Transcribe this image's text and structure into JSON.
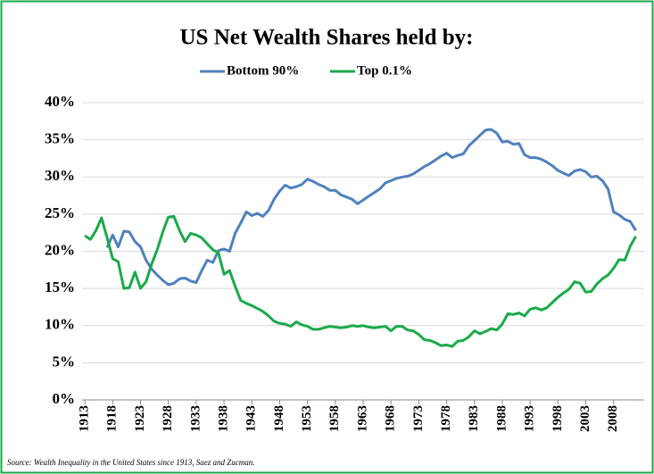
{
  "chart_data": {
    "type": "line",
    "title": "US Net Wealth Shares held by:",
    "source": "Source:  Wealth Inequality in the United States since 1913, Saez and Zucman.",
    "x": [
      1913,
      1914,
      1915,
      1916,
      1917,
      1918,
      1919,
      1920,
      1921,
      1922,
      1923,
      1924,
      1925,
      1926,
      1927,
      1928,
      1929,
      1930,
      1931,
      1932,
      1933,
      1934,
      1935,
      1936,
      1937,
      1938,
      1939,
      1940,
      1941,
      1942,
      1943,
      1944,
      1945,
      1946,
      1947,
      1948,
      1949,
      1950,
      1951,
      1952,
      1953,
      1954,
      1955,
      1956,
      1957,
      1958,
      1959,
      1960,
      1961,
      1962,
      1963,
      1964,
      1965,
      1966,
      1967,
      1968,
      1969,
      1970,
      1971,
      1972,
      1973,
      1974,
      1975,
      1976,
      1977,
      1978,
      1979,
      1980,
      1981,
      1982,
      1983,
      1984,
      1985,
      1986,
      1987,
      1988,
      1989,
      1990,
      1991,
      1992,
      1993,
      1994,
      1995,
      1996,
      1997,
      1998,
      1999,
      2000,
      2001,
      2002,
      2003,
      2004,
      2005,
      2006,
      2007,
      2008,
      2009,
      2010,
      2011,
      2012
    ],
    "series": [
      {
        "name": "Bottom 90%",
        "color": "#4f81bd",
        "values": [
          null,
          null,
          null,
          null,
          20.5,
          22.2,
          20.6,
          22.7,
          22.6,
          21.3,
          20.6,
          18.8,
          17.6,
          16.8,
          16.1,
          15.5,
          15.7,
          16.3,
          16.4,
          16.0,
          15.8,
          17.4,
          18.8,
          18.5,
          20.1,
          20.3,
          20.0,
          22.4,
          23.8,
          25.3,
          24.8,
          25.1,
          24.7,
          25.5,
          27.0,
          28.1,
          28.9,
          28.5,
          28.7,
          29.0,
          29.7,
          29.4,
          29.0,
          28.7,
          28.2,
          28.2,
          27.6,
          27.3,
          27.0,
          26.4,
          26.9,
          27.4,
          27.9,
          28.4,
          29.2,
          29.5,
          29.8,
          30.0,
          30.1,
          30.4,
          30.9,
          31.4,
          31.8,
          32.3,
          32.8,
          33.2,
          32.6,
          32.9,
          33.1,
          34.2,
          34.9,
          35.6,
          36.3,
          36.4,
          35.9,
          34.7,
          34.8,
          34.4,
          34.5,
          33.0,
          32.6,
          32.6,
          32.4,
          32.0,
          31.5,
          30.9,
          30.5,
          30.2,
          30.8,
          31.0,
          30.7,
          30.0,
          30.1,
          29.5,
          28.4,
          25.3,
          24.9,
          24.3,
          24.0,
          22.8
        ]
      },
      {
        "name": "Top 0.1%",
        "color": "#1aaa4a",
        "values": [
          22.1,
          21.6,
          22.8,
          24.5,
          21.8,
          19.0,
          18.6,
          15.0,
          15.1,
          17.2,
          15.0,
          15.9,
          18.3,
          20.2,
          22.6,
          24.6,
          24.7,
          22.8,
          21.3,
          22.4,
          22.2,
          21.8,
          21.0,
          20.2,
          19.8,
          16.9,
          17.4,
          15.3,
          13.4,
          13.0,
          12.7,
          12.3,
          11.9,
          11.3,
          10.6,
          10.3,
          10.2,
          9.9,
          10.5,
          10.1,
          9.9,
          9.5,
          9.5,
          9.7,
          9.9,
          9.8,
          9.7,
          9.8,
          10.0,
          9.9,
          10.0,
          9.8,
          9.7,
          9.8,
          9.9,
          9.3,
          9.9,
          9.9,
          9.4,
          9.3,
          8.8,
          8.1,
          8.0,
          7.7,
          7.3,
          7.4,
          7.2,
          7.9,
          8.0,
          8.5,
          9.3,
          8.9,
          9.2,
          9.6,
          9.4,
          10.2,
          11.6,
          11.5,
          11.7,
          11.3,
          12.2,
          12.4,
          12.1,
          12.4,
          13.1,
          13.8,
          14.4,
          14.9,
          15.9,
          15.7,
          14.5,
          14.6,
          15.6,
          16.3,
          16.8,
          17.7,
          18.9,
          18.8,
          20.7,
          22.0
        ]
      }
    ],
    "xlim": [
      1912.5,
      2013.5
    ],
    "xticks": [
      1913,
      1918,
      1923,
      1928,
      1933,
      1938,
      1943,
      1948,
      1953,
      1958,
      1963,
      1968,
      1973,
      1978,
      1983,
      1988,
      1993,
      1998,
      2003,
      2008
    ],
    "ylim": [
      0,
      40
    ],
    "yticks": [
      {
        "value": 0,
        "label": "0%"
      },
      {
        "value": 5,
        "label": "5%"
      },
      {
        "value": 10,
        "label": "10%"
      },
      {
        "value": 15,
        "label": "15%"
      },
      {
        "value": 20,
        "label": "20%"
      },
      {
        "value": 25,
        "label": "25%"
      },
      {
        "value": 30,
        "label": "30%"
      },
      {
        "value": 35,
        "label": "35%"
      },
      {
        "value": 40,
        "label": "40%"
      }
    ],
    "grid": true,
    "legend": "top"
  }
}
